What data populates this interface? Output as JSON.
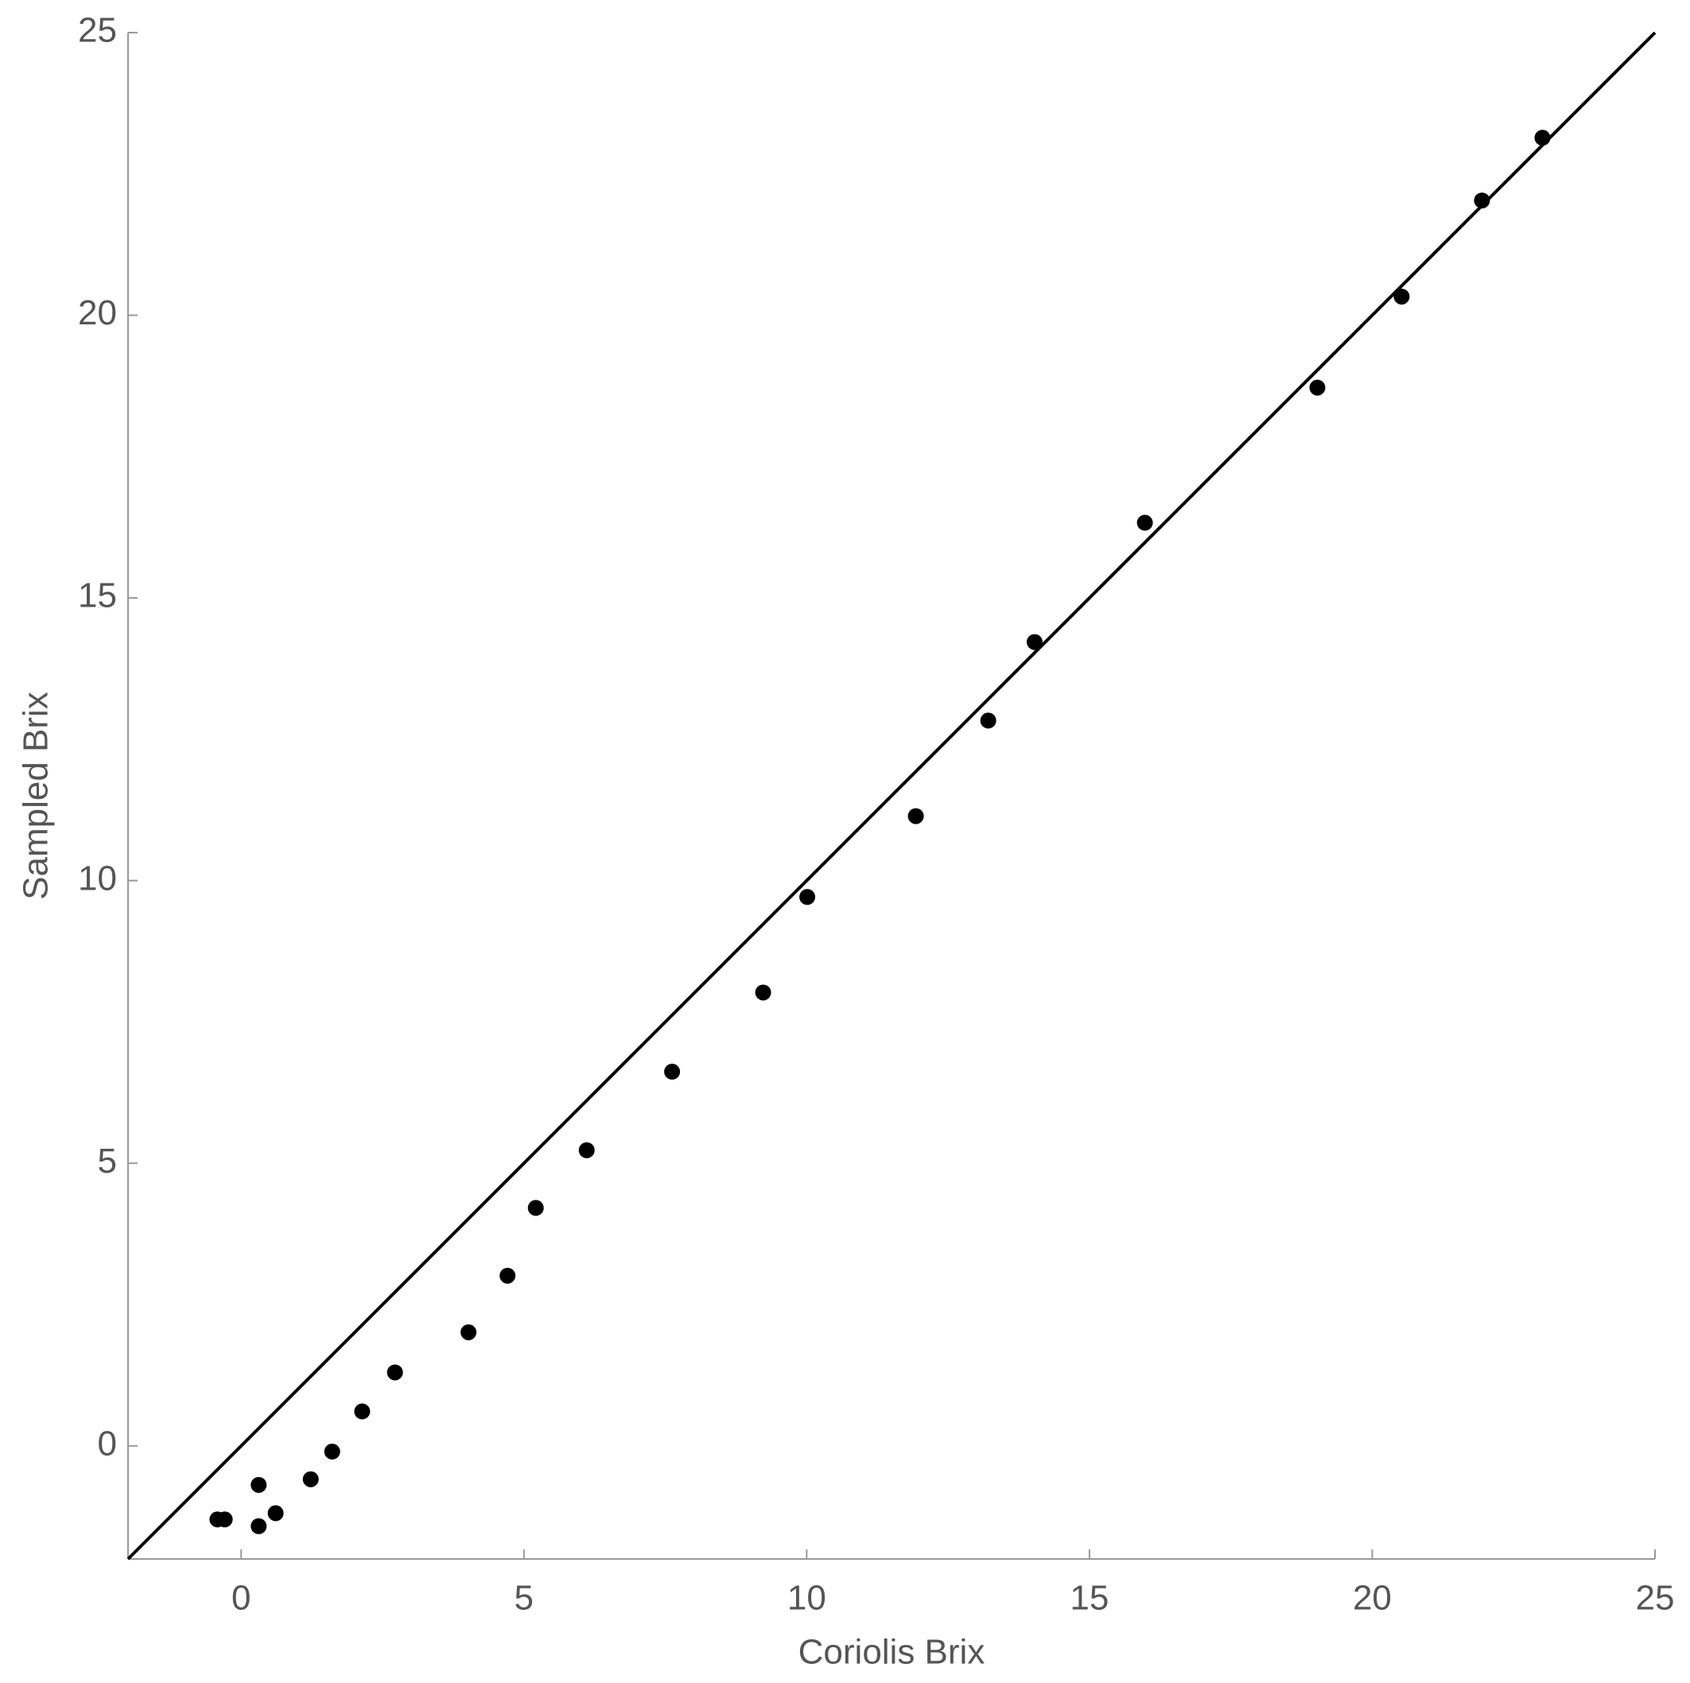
{
  "chart_data": {
    "type": "scatter",
    "x_label": "Coriolis Brix",
    "y_label": "Sampled Brix",
    "xlim": [
      -2,
      25
    ],
    "ylim": [
      -2,
      25
    ],
    "xticks": [
      0,
      5,
      10,
      15,
      20,
      25
    ],
    "yticks": [
      0,
      5,
      10,
      15,
      20,
      25
    ],
    "color": "#000000",
    "x": [
      -0.42,
      -0.29,
      0.31,
      0.31,
      0.61,
      1.23,
      1.61,
      2.14,
      2.72,
      4.02,
      4.71,
      5.21,
      6.11,
      7.62,
      9.23,
      10.01,
      11.93,
      13.21,
      14.03,
      15.98,
      19.03,
      20.52,
      21.94,
      23.01
    ],
    "values": [
      -1.3,
      -1.3,
      -0.69,
      -1.42,
      -1.19,
      -0.59,
      -0.1,
      0.61,
      1.3,
      2.01,
      3.01,
      4.21,
      5.23,
      6.62,
      8.02,
      9.71,
      11.14,
      12.83,
      14.22,
      16.33,
      18.72,
      20.33,
      22.03,
      23.14
    ],
    "reference_line": {
      "x": [
        -2,
        25
      ],
      "values": [
        -2,
        25
      ],
      "color": "#000000"
    }
  }
}
